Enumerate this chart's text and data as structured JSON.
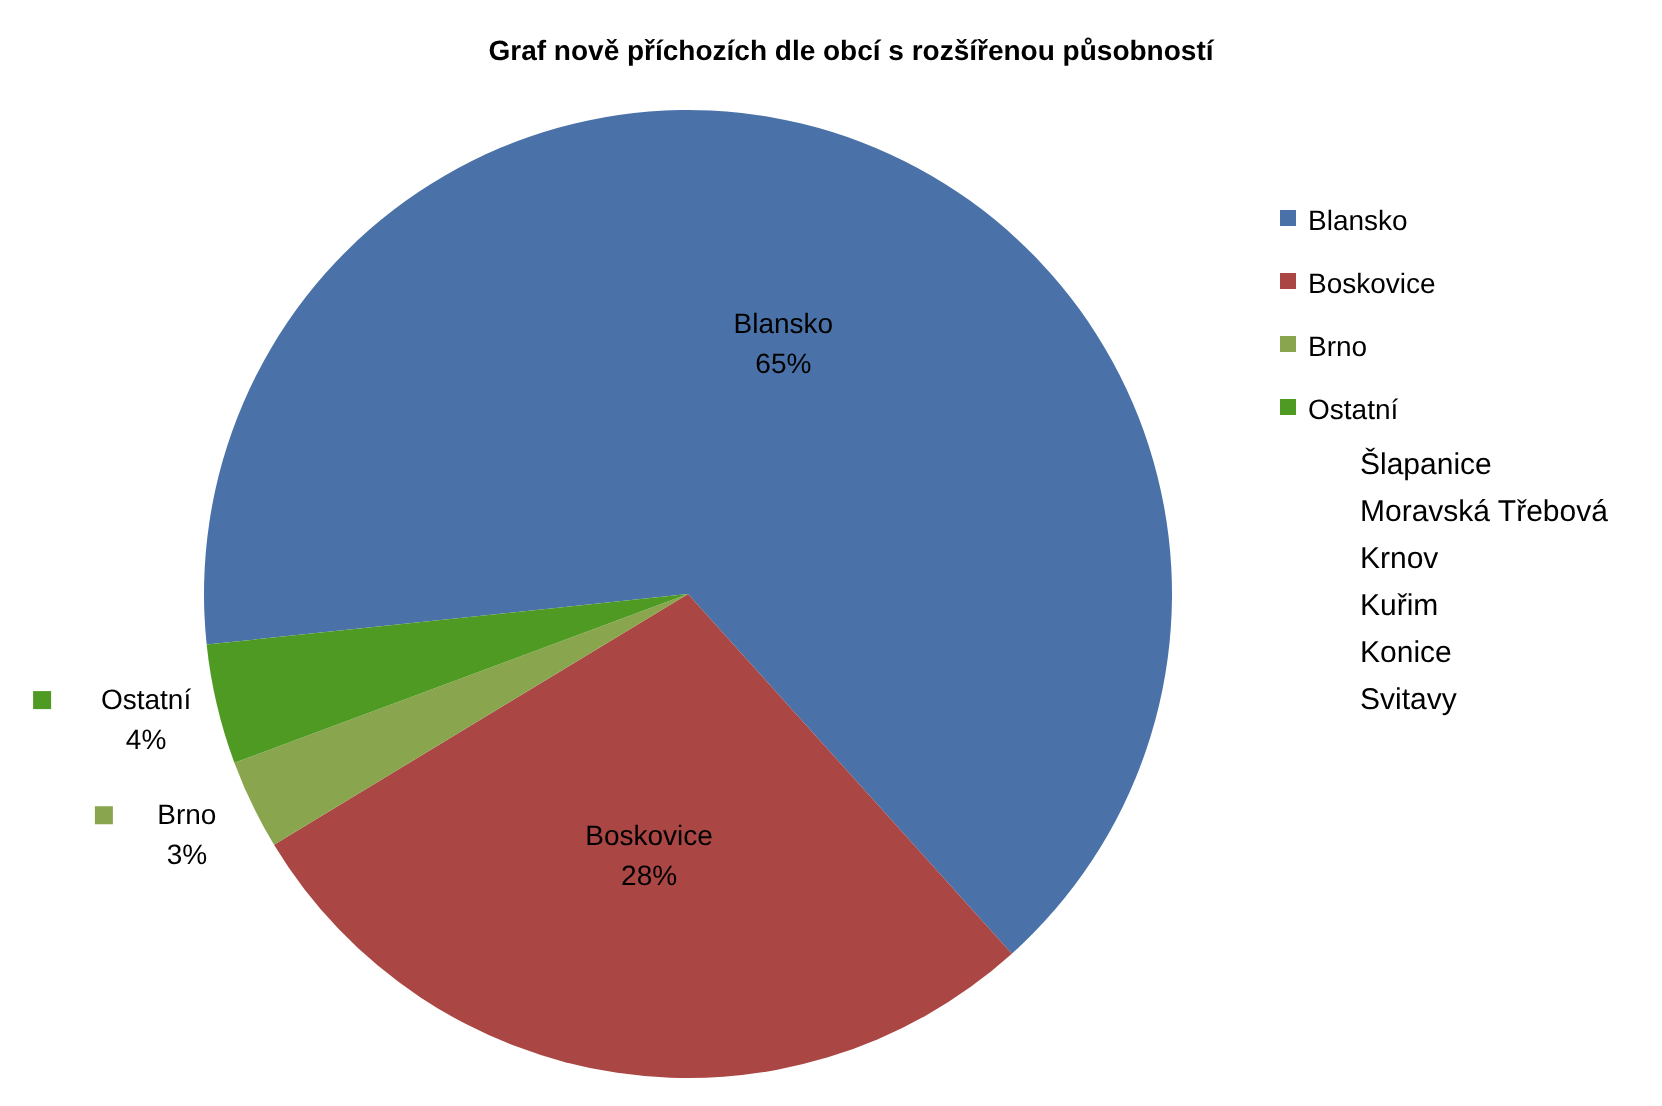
{
  "chart_data": {
    "type": "pie",
    "title": "Graf nově příchozích dle obcí s rozšířenou působností",
    "categories": [
      "Blansko",
      "Boskovice",
      "Brno",
      "Ostatní"
    ],
    "values": [
      65,
      28,
      3,
      4
    ],
    "value_labels": [
      "65%",
      "28%",
      "3%",
      "4%"
    ],
    "colors": [
      "#4a72a8",
      "#aa4643",
      "#89a54e",
      "#4e9a23"
    ],
    "legend": "right",
    "annotations": [
      "Šlapanice",
      "Moravská Třebová",
      "Krnov",
      "Kuřim",
      "Konice",
      "Svitavy"
    ]
  }
}
